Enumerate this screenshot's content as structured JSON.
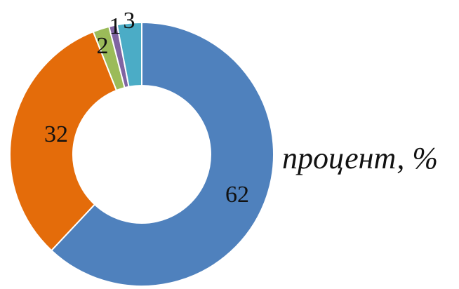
{
  "chart_data": {
    "type": "pie",
    "variant": "donut",
    "title": "процент, %",
    "legend": "none",
    "slices": [
      {
        "label": "62",
        "value": 62,
        "color": "#4f81bd"
      },
      {
        "label": "32",
        "value": 32,
        "color": "#e46c0a"
      },
      {
        "label": "2",
        "value": 2,
        "color": "#9bbb59"
      },
      {
        "label": "1",
        "value": 1,
        "color": "#8064a2"
      },
      {
        "label": "3",
        "value": 3,
        "color": "#4bacc6"
      }
    ]
  }
}
